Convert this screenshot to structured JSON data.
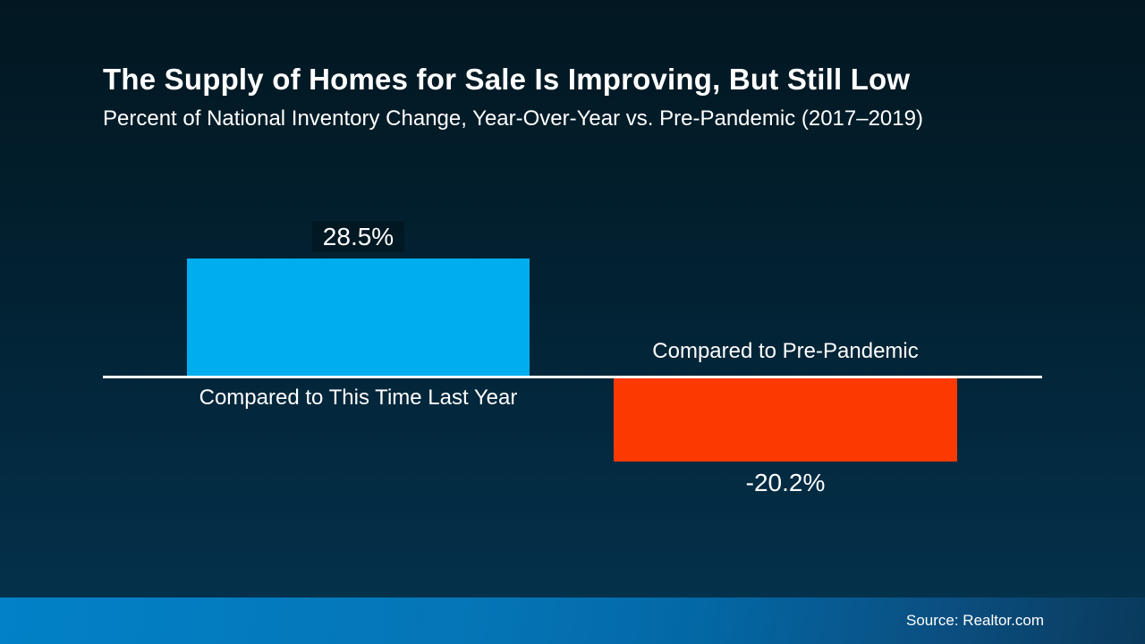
{
  "slide": {
    "title": "The Supply of Homes for Sale Is Improving, But Still Low",
    "subtitle": "Percent of National Inventory Change, Year-Over-Year vs. Pre-Pandemic (2017–2019)",
    "source": "Source: Realtor.com"
  },
  "colors": {
    "background_top": "#021721",
    "background_bottom": "#04314b",
    "bar_positive": "#00ADEF",
    "bar_negative": "#FC3A00",
    "axis_line": "#FFFFFF",
    "text": "#FFFFFF",
    "footer_gradient_left": "#0281C8",
    "footer_gradient_right": "#093A5C"
  },
  "chart_data": {
    "type": "bar",
    "title": "The Supply of Homes for Sale Is Improving, But Still Low",
    "subtitle": "Percent of National Inventory Change, Year-Over-Year vs. Pre-Pandemic (2017–2019)",
    "categories": [
      "Compared to This Time Last Year",
      "Compared to Pre-Pandemic"
    ],
    "values": [
      28.5,
      -20.2
    ],
    "value_labels": [
      "28.5%",
      "-20.2%"
    ],
    "bar_colors": [
      "#00ADEF",
      "#FC3A00"
    ],
    "baseline": 0,
    "ylim": [
      -25,
      32
    ],
    "grid": false,
    "legend": "none",
    "xlabel": "",
    "ylabel": "",
    "annotations": [
      "Source: Realtor.com"
    ]
  }
}
